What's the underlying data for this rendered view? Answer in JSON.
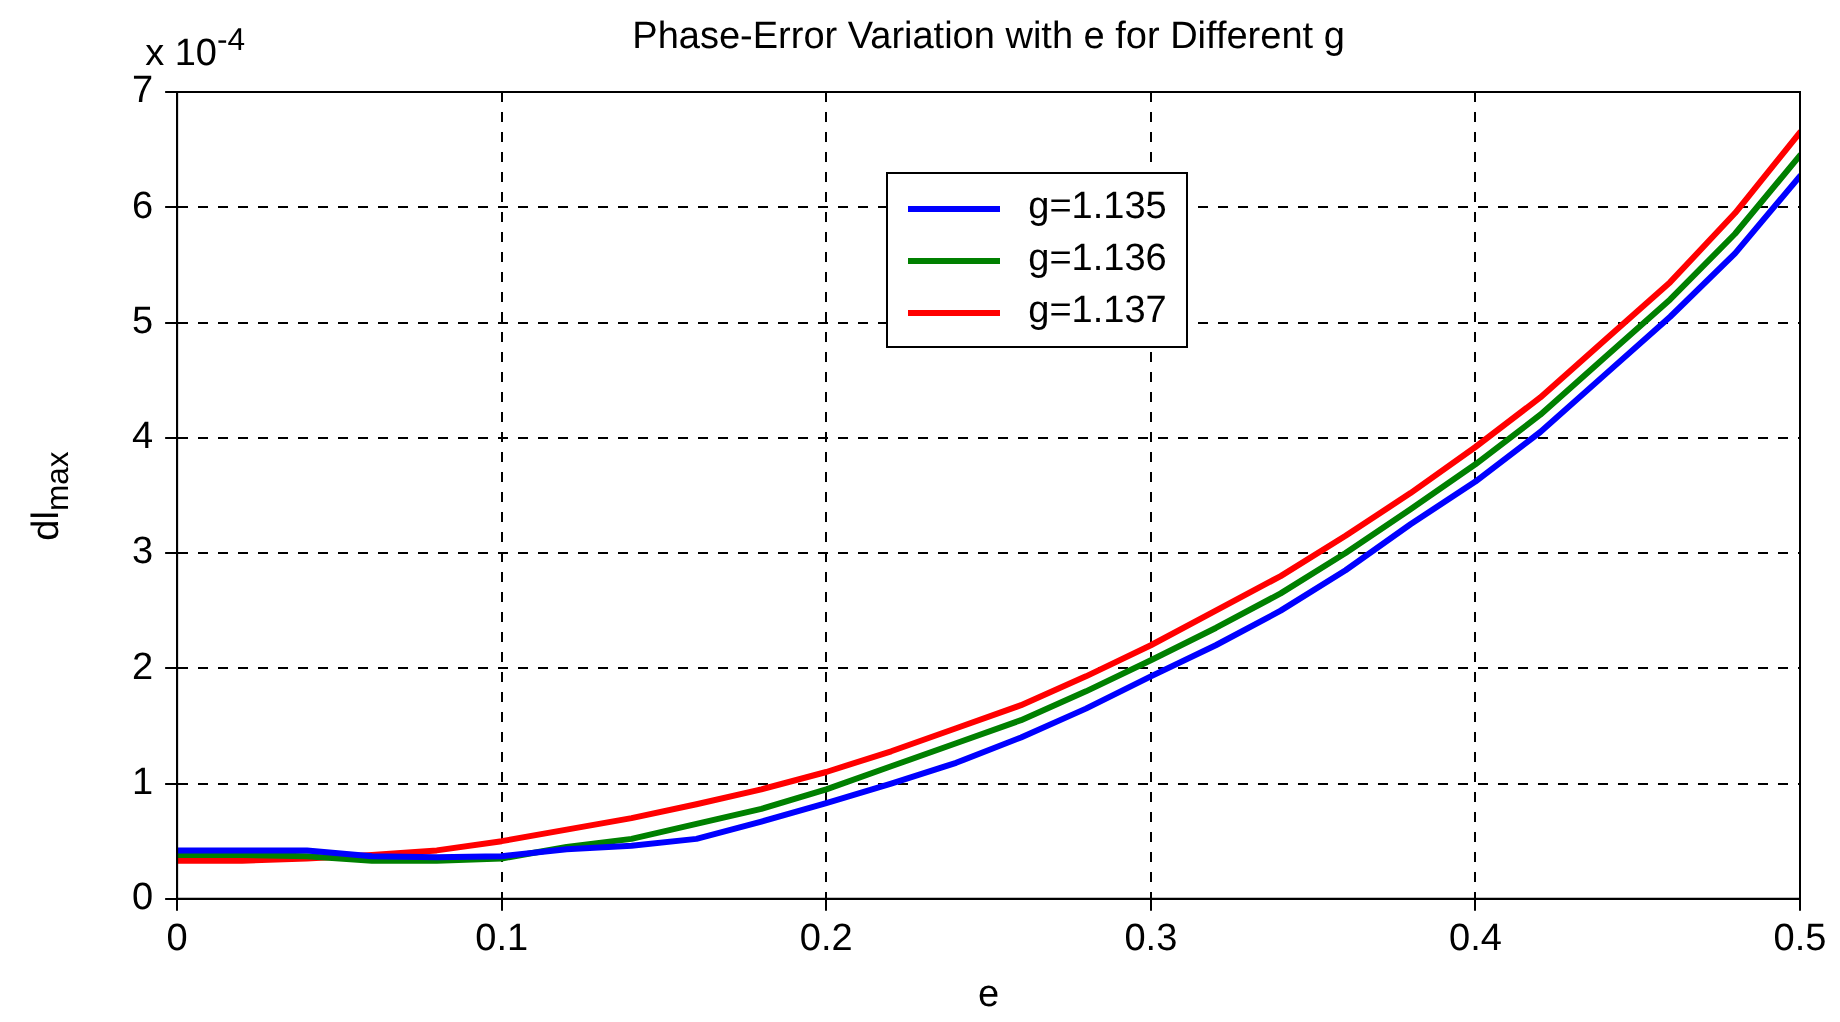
{
  "chart_data": {
    "type": "line",
    "title": "Phase-Error Variation with e for Different g",
    "xlabel": "e",
    "ylabel": "dl$_{max}$",
    "annotations": [
      "x 10$^{-4}$"
    ],
    "x": [
      0,
      0.02,
      0.04,
      0.06,
      0.08,
      0.1,
      0.12,
      0.14,
      0.16,
      0.18,
      0.2,
      0.22,
      0.24,
      0.26,
      0.28,
      0.3,
      0.32,
      0.34,
      0.36,
      0.38,
      0.4,
      0.42,
      0.44,
      0.46,
      0.48,
      0.5
    ],
    "series": [
      {
        "name": "g=1.135",
        "color": "#0000ff",
        "values": [
          0.42,
          0.42,
          0.42,
          0.37,
          0.36,
          0.37,
          0.43,
          0.46,
          0.52,
          0.67,
          0.83,
          1.0,
          1.18,
          1.4,
          1.65,
          1.93,
          2.2,
          2.5,
          2.85,
          3.25,
          3.62,
          4.05,
          4.55,
          5.05,
          5.6,
          6.27
        ]
      },
      {
        "name": "g=1.136",
        "color": "#008000",
        "values": [
          0.38,
          0.38,
          0.37,
          0.33,
          0.33,
          0.35,
          0.45,
          0.52,
          0.65,
          0.78,
          0.95,
          1.15,
          1.35,
          1.55,
          1.8,
          2.07,
          2.35,
          2.65,
          3.0,
          3.38,
          3.77,
          4.2,
          4.7,
          5.2,
          5.77,
          6.45
        ]
      },
      {
        "name": "g=1.137",
        "color": "#ff0000",
        "values": [
          0.33,
          0.33,
          0.35,
          0.38,
          0.42,
          0.5,
          0.6,
          0.7,
          0.82,
          0.95,
          1.1,
          1.28,
          1.48,
          1.68,
          1.93,
          2.2,
          2.5,
          2.8,
          3.15,
          3.52,
          3.92,
          4.35,
          4.85,
          5.35,
          5.95,
          6.65
        ]
      }
    ],
    "xlim": [
      0,
      0.5
    ],
    "xticks": [
      0,
      0.1,
      0.2,
      0.3,
      0.4,
      0.5
    ],
    "ylim": [
      0,
      7
    ],
    "yticks": [
      0,
      1,
      2,
      3,
      4,
      5,
      6,
      7
    ],
    "grid": true,
    "legend": "top",
    "marker": "none",
    "line_style": "solid"
  }
}
